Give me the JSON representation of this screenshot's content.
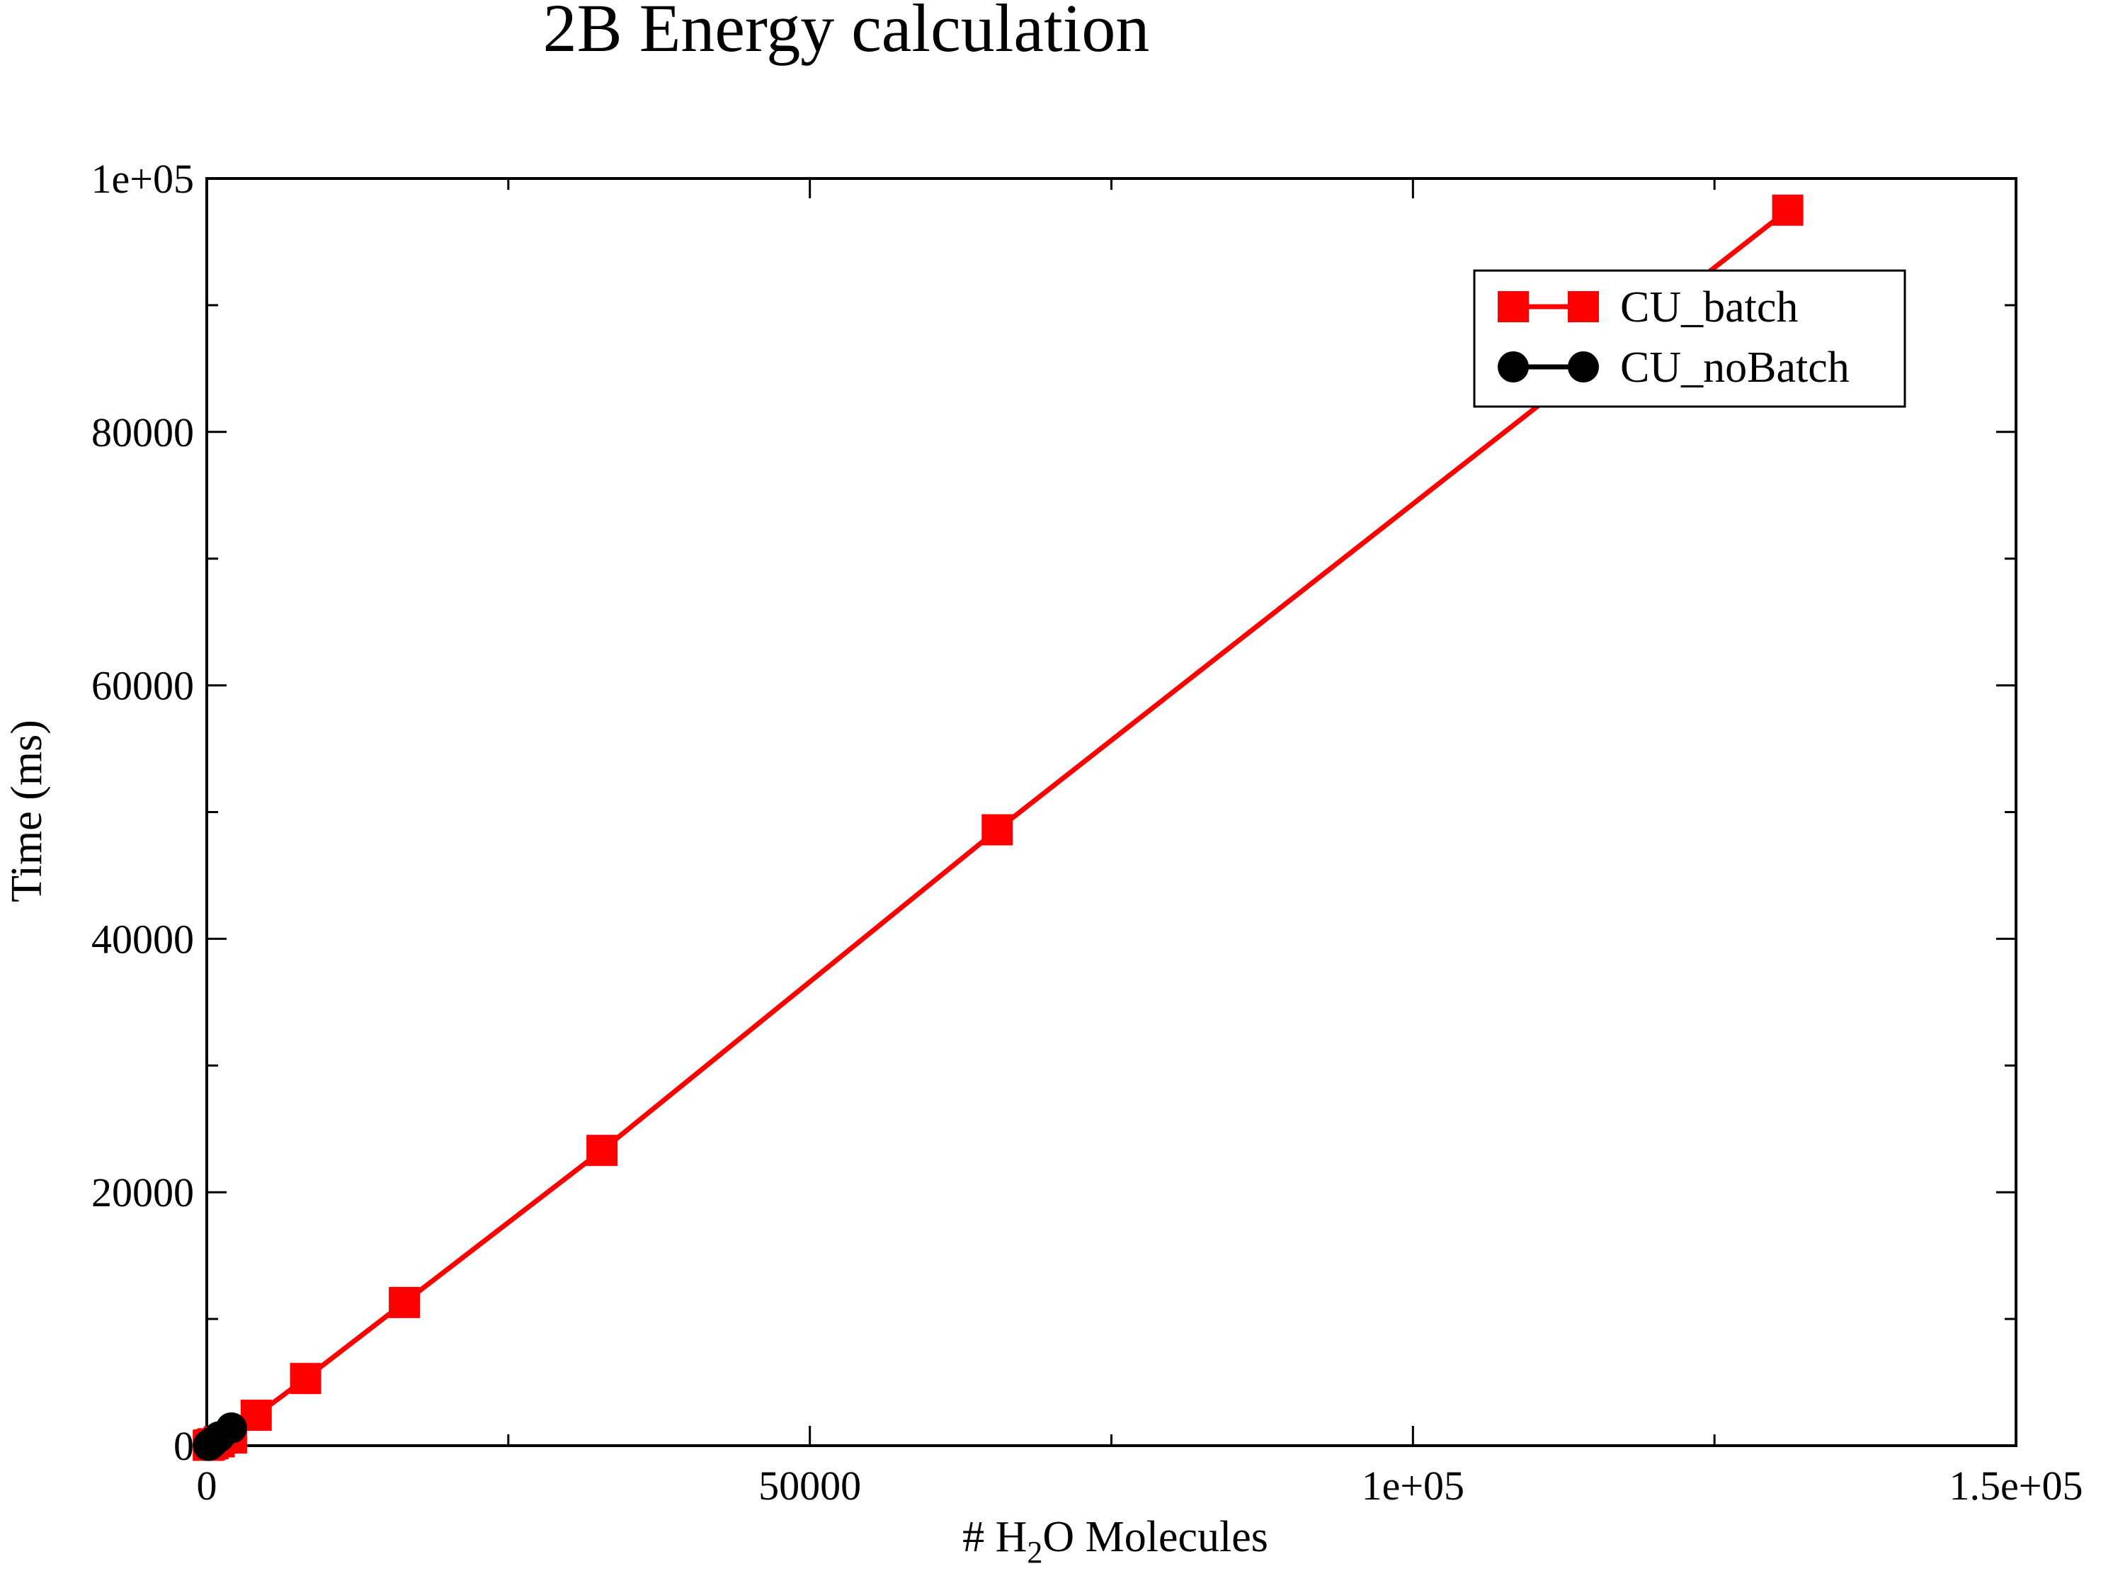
{
  "chart_data": {
    "type": "line",
    "title": "2B Energy calculation",
    "xlabel": {
      "prefix": "# H",
      "sub": "2",
      "suffix": "O Molecules"
    },
    "ylabel": "Time (ms)",
    "xlim": [
      0,
      150000
    ],
    "ylim": [
      0,
      100000
    ],
    "x_ticks": [
      {
        "value": 0,
        "label": "0"
      },
      {
        "value": 50000,
        "label": "50000"
      },
      {
        "value": 100000,
        "label": "1e+05"
      },
      {
        "value": 150000,
        "label": "1.5e+05"
      }
    ],
    "y_ticks": [
      {
        "value": 0,
        "label": "0"
      },
      {
        "value": 20000,
        "label": "20000"
      },
      {
        "value": 40000,
        "label": "40000"
      },
      {
        "value": 60000,
        "label": "60000"
      },
      {
        "value": 80000,
        "label": "80000"
      },
      {
        "value": 100000,
        "label": "1e+05"
      }
    ],
    "x_minor_ticks": [
      25000,
      75000,
      125000
    ],
    "y_minor_ticks": [
      10000,
      30000,
      50000,
      70000,
      90000
    ],
    "grid": false,
    "legend_position": "top-right",
    "series": [
      {
        "name": "CU_batch",
        "color": "#ff0000",
        "marker": "square",
        "x": [
          128,
          256,
          512,
          1024,
          2048,
          4096,
          8192,
          16384,
          32768,
          65536,
          131072
        ],
        "y": [
          30,
          70,
          150,
          300,
          600,
          2400,
          5300,
          11300,
          23300,
          48600,
          97500
        ]
      },
      {
        "name": "CU_noBatch",
        "color": "#000000",
        "marker": "circle",
        "x": [
          128,
          256,
          512,
          1024,
          2048
        ],
        "y": [
          20,
          80,
          300,
          700,
          1400
        ]
      }
    ]
  }
}
